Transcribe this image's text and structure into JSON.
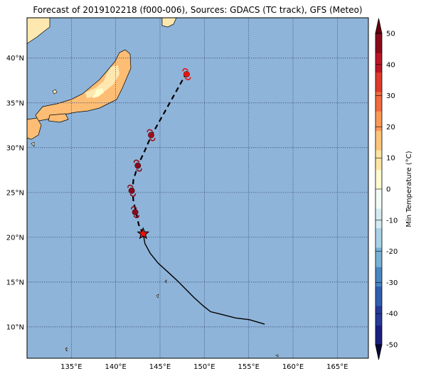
{
  "title": "Forecast of 2019102218 (f000-006), Sources: GDACS (TC track), GFS (Meteo)",
  "map": {
    "lon_range": [
      130,
      168.5
    ],
    "lat_range": [
      6.5,
      44.5
    ],
    "ocean_color": "#8fb4d9",
    "gridline_color": "#3a4d7a",
    "lon_ticks": [
      {
        "value": 135,
        "label": "135°E"
      },
      {
        "value": 140,
        "label": "140°E"
      },
      {
        "value": 145,
        "label": "145°E"
      },
      {
        "value": 150,
        "label": "150°E"
      },
      {
        "value": 155,
        "label": "155°E"
      },
      {
        "value": 160,
        "label": "160°E"
      },
      {
        "value": 165,
        "label": "165°E"
      }
    ],
    "lat_ticks": [
      {
        "value": 10,
        "label": "10°N"
      },
      {
        "value": 15,
        "label": "15°N"
      },
      {
        "value": 20,
        "label": "20°N"
      },
      {
        "value": 25,
        "label": "25°N"
      },
      {
        "value": 30,
        "label": "30°N"
      },
      {
        "value": 35,
        "label": "35°N"
      },
      {
        "value": 40,
        "label": "40°N"
      }
    ]
  },
  "track": {
    "past_color": "#000000",
    "forecast_color": "#000000",
    "past": [
      [
        156.8,
        10.3
      ],
      [
        155.1,
        10.8
      ],
      [
        153.5,
        11.0
      ],
      [
        151.9,
        11.4
      ],
      [
        150.7,
        11.7
      ],
      [
        149.8,
        12.4
      ],
      [
        148.8,
        13.3
      ],
      [
        147.9,
        14.2
      ],
      [
        146.9,
        15.2
      ],
      [
        145.8,
        16.2
      ],
      [
        144.8,
        17.1
      ],
      [
        143.9,
        18.2
      ],
      [
        143.3,
        19.3
      ],
      [
        143.1,
        20.4
      ]
    ],
    "forecast": [
      [
        143.1,
        20.4
      ],
      [
        142.6,
        21.4
      ],
      [
        142.3,
        22.8
      ],
      [
        142.0,
        24.0
      ],
      [
        141.9,
        25.3
      ],
      [
        142.0,
        26.4
      ],
      [
        142.5,
        28.0
      ],
      [
        143.3,
        29.7
      ],
      [
        144.0,
        31.3
      ],
      [
        145.3,
        33.6
      ],
      [
        146.6,
        35.9
      ],
      [
        147.9,
        38.2
      ]
    ],
    "current_position": [
      143.1,
      20.4
    ],
    "current_marker_color": "#e8140e",
    "storm_symbols": [
      {
        "lon": 142.2,
        "lat": 22.8,
        "color": "#8b0a1a"
      },
      {
        "lon": 141.8,
        "lat": 25.2,
        "color": "#8b0a1a"
      },
      {
        "lon": 142.5,
        "lat": 28.0,
        "color": "#8b0a1a"
      },
      {
        "lon": 144.0,
        "lat": 31.4,
        "color": "#a1101e"
      },
      {
        "lon": 148.0,
        "lat": 38.2,
        "color": "#e8140e"
      }
    ]
  },
  "land": {
    "colors": [
      "#fee8b0",
      "#fdbd74",
      "#ffffcc"
    ],
    "outline_color": "#000000"
  },
  "colorbar": {
    "label": "Min Temperature (°C)",
    "ticks": [
      "-50",
      "-40",
      "-30",
      "-20",
      "-10",
      "0",
      "10",
      "20",
      "30",
      "40",
      "50"
    ],
    "bands": [
      "#1b1f80",
      "#263a9a",
      "#2f5fb0",
      "#4a86c2",
      "#79b1d6",
      "#a9d2e6",
      "#d5ebf3",
      "#f2fbf5",
      "#fffbd0",
      "#fee5a3",
      "#fdc57a",
      "#fb9957",
      "#f26a3f",
      "#de3b2d",
      "#bc1626",
      "#8b0a1a"
    ]
  }
}
